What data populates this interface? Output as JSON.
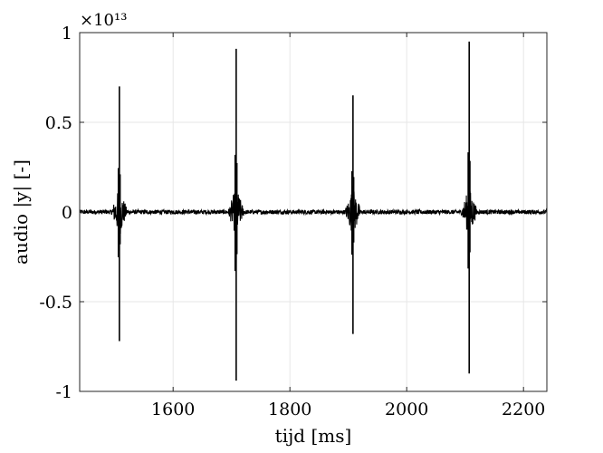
{
  "chart_data": {
    "type": "line",
    "title": "",
    "xlabel": "tijd [ms]",
    "ylabel": "audio |y| [-]",
    "y_exponent_label": "×10¹³",
    "xlim": [
      1440,
      2240
    ],
    "ylim": [
      -1,
      1
    ],
    "y_scale_factor": 10000000000000.0,
    "grid": true,
    "x_ticks": [
      1600,
      1800,
      2000,
      2200
    ],
    "x_tick_labels": [
      "1600",
      "1800",
      "2000",
      "2200"
    ],
    "y_ticks": [
      1,
      0.5,
      0,
      -0.5,
      -1
    ],
    "y_tick_labels": [
      "1",
      "0.5",
      "0",
      "-0.5",
      "-1"
    ],
    "line_color": "#000000",
    "grid_color": "#e6e6e6",
    "bursts": [
      {
        "x": 1508,
        "peak_max": 0.7,
        "peak_min": -0.72
      },
      {
        "x": 1708,
        "peak_max": 0.91,
        "peak_min": -0.94
      },
      {
        "x": 1908,
        "peak_max": 0.65,
        "peak_min": -0.68
      },
      {
        "x": 2107,
        "peak_max": 0.95,
        "peak_min": -0.9
      }
    ],
    "noise_amplitude": 0.012,
    "burst_halfwidth_ms": 15,
    "burst_amplitude": 0.14
  }
}
